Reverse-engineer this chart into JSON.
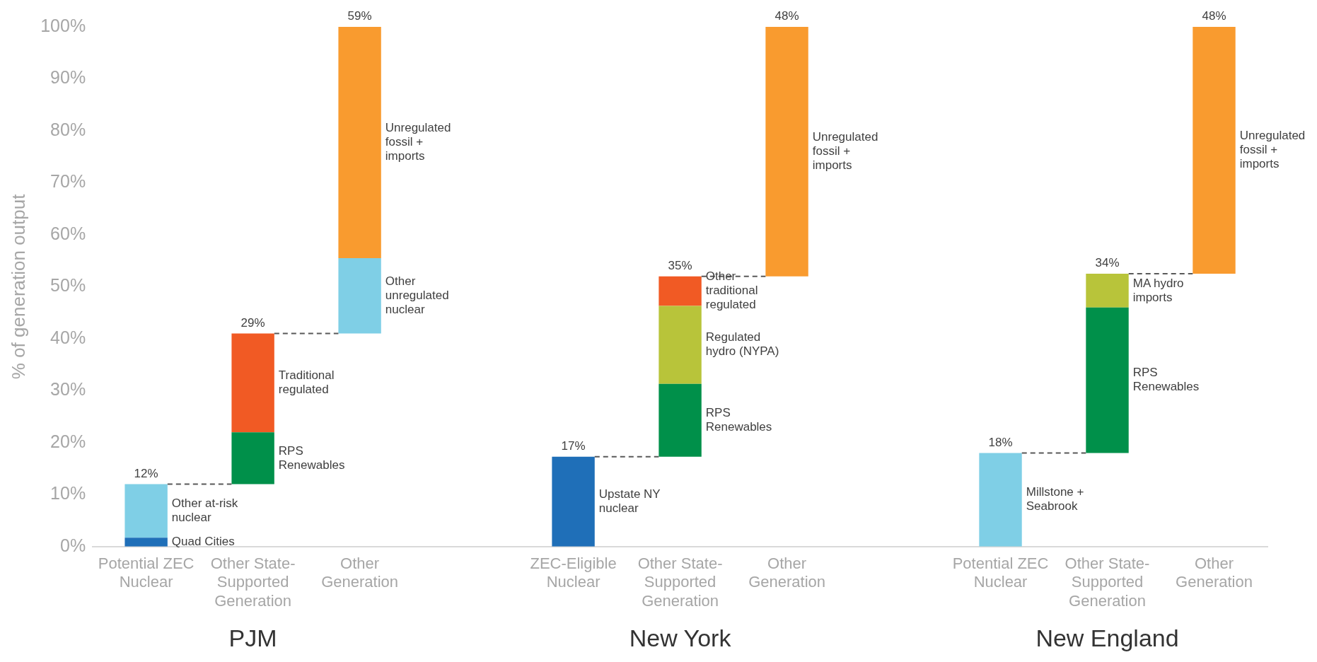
{
  "chart_data": {
    "type": "bar",
    "ylabel": "% of generation output",
    "categories": [
      "Potential ZEC Nuclear",
      "Other State-Supported Generation",
      "Other Generation",
      null,
      "ZEC-Eligible Nuclear",
      "Other State-Supported Generation",
      "Other Generation",
      null,
      "Potential ZEC Nuclear",
      "Other State-Supported Generation",
      "Other Generation"
    ],
    "series": [
      {
        "name": "Quad Cities",
        "color": "#1f6fb8",
        "base": [
          0,
          null,
          null,
          null,
          null,
          null,
          null,
          null,
          null,
          null,
          null
        ],
        "values": [
          1.7,
          null,
          null,
          null,
          null,
          null,
          null,
          null,
          null,
          null,
          null
        ]
      },
      {
        "name": "Other at-risk nuclear",
        "color": "#7fcfe6",
        "base": [
          1.7,
          null,
          null,
          null,
          null,
          null,
          null,
          null,
          null,
          null,
          null
        ],
        "values": [
          10.3,
          null,
          null,
          null,
          null,
          null,
          null,
          null,
          null,
          null,
          null
        ]
      },
      {
        "name": "RPS Renewables",
        "color": "#00904a",
        "base": [
          null,
          12,
          null,
          null,
          null,
          null,
          null,
          null,
          null,
          null,
          null
        ],
        "values": [
          null,
          10,
          null,
          null,
          null,
          null,
          null,
          null,
          null,
          null,
          null
        ]
      },
      {
        "name": "Traditional regulated",
        "color": "#f15a24",
        "base": [
          null,
          22,
          null,
          null,
          null,
          null,
          null,
          null,
          null,
          null,
          null
        ],
        "values": [
          null,
          19,
          null,
          null,
          null,
          null,
          null,
          null,
          null,
          null,
          null
        ]
      },
      {
        "name": "Other unregulated nuclear",
        "color": "#7fcfe6",
        "base": [
          null,
          null,
          41,
          null,
          null,
          null,
          null,
          null,
          null,
          null,
          null
        ],
        "values": [
          null,
          null,
          14.5,
          null,
          null,
          null,
          null,
          null,
          null,
          null,
          null
        ]
      },
      {
        "name": "Unregulated fossil + imports",
        "color": "#f99b2f",
        "base": [
          null,
          null,
          55.5,
          null,
          null,
          null,
          null,
          null,
          null,
          null,
          null
        ],
        "values": [
          null,
          null,
          44.5,
          null,
          null,
          null,
          null,
          null,
          null,
          null,
          null
        ]
      },
      {
        "name": "Upstate NY nuclear",
        "color": "#1f6fb8",
        "base": [
          null,
          null,
          null,
          null,
          0,
          null,
          null,
          null,
          null,
          null,
          null
        ],
        "values": [
          null,
          null,
          null,
          null,
          17.3,
          null,
          null,
          null,
          null,
          null,
          null
        ]
      },
      {
        "name": "RPS Renewables",
        "color": "#00904a",
        "base": [
          null,
          null,
          null,
          null,
          null,
          17.3,
          null,
          null,
          null,
          null,
          null
        ],
        "values": [
          null,
          null,
          null,
          null,
          null,
          14,
          null,
          null,
          null,
          null,
          null
        ]
      },
      {
        "name": "Regulated hydro (NYPA)",
        "color": "#b8c43a",
        "base": [
          null,
          null,
          null,
          null,
          null,
          31.3,
          null,
          null,
          null,
          null,
          null
        ],
        "values": [
          null,
          null,
          null,
          null,
          null,
          15,
          null,
          null,
          null,
          null,
          null
        ]
      },
      {
        "name": "Other traditional regulated",
        "color": "#f15a24",
        "base": [
          null,
          null,
          null,
          null,
          null,
          46.3,
          null,
          null,
          null,
          null,
          null
        ],
        "values": [
          null,
          null,
          null,
          null,
          null,
          5.7,
          null,
          null,
          null,
          null,
          null
        ]
      },
      {
        "name": "Unregulated fossil + imports",
        "color": "#f99b2f",
        "base": [
          null,
          null,
          null,
          null,
          null,
          null,
          52,
          null,
          null,
          null,
          null
        ],
        "values": [
          null,
          null,
          null,
          null,
          null,
          null,
          48,
          null,
          null,
          null,
          null
        ]
      },
      {
        "name": "Millstone + Seabrook",
        "color": "#7fcfe6",
        "base": [
          null,
          null,
          null,
          null,
          null,
          null,
          null,
          null,
          0,
          null,
          null
        ],
        "values": [
          null,
          null,
          null,
          null,
          null,
          null,
          null,
          null,
          18,
          null,
          null
        ]
      },
      {
        "name": "RPS Renewables",
        "color": "#00904a",
        "base": [
          null,
          null,
          null,
          null,
          null,
          null,
          null,
          null,
          null,
          18,
          null
        ],
        "values": [
          null,
          null,
          null,
          null,
          null,
          null,
          null,
          null,
          null,
          28,
          null
        ]
      },
      {
        "name": "MA hydro imports",
        "color": "#b8c43a",
        "base": [
          null,
          null,
          null,
          null,
          null,
          null,
          null,
          null,
          null,
          46,
          null
        ],
        "values": [
          null,
          null,
          null,
          null,
          null,
          null,
          null,
          null,
          null,
          6.5,
          null
        ]
      },
      {
        "name": "Unregulated fossil + imports",
        "color": "#f99b2f",
        "base": [
          null,
          null,
          null,
          null,
          null,
          null,
          null,
          null,
          null,
          null,
          52.5
        ],
        "values": [
          null,
          null,
          null,
          null,
          null,
          null,
          null,
          null,
          null,
          null,
          47.5
        ]
      }
    ],
    "totals": [
      "12%",
      "29%",
      "59%",
      null,
      "17%",
      "35%",
      "48%",
      null,
      "18%",
      "34%",
      "48%"
    ],
    "annotations": [
      "PJM",
      "New York",
      "New England"
    ],
    "ylim": [
      0,
      100
    ],
    "yticks": [
      {
        "value": 0,
        "label": "0%"
      },
      {
        "value": 10,
        "label": "10%"
      },
      {
        "value": 20,
        "label": "20%"
      },
      {
        "value": 30,
        "label": "30%"
      },
      {
        "value": 40,
        "label": "40%"
      },
      {
        "value": 50,
        "label": "50%"
      },
      {
        "value": 60,
        "label": "60%"
      },
      {
        "value": 70,
        "label": "70%"
      },
      {
        "value": 80,
        "label": "80%"
      },
      {
        "value": 90,
        "label": "90%"
      },
      {
        "value": 100,
        "label": "100%"
      }
    ],
    "grid": false,
    "legend": false
  }
}
